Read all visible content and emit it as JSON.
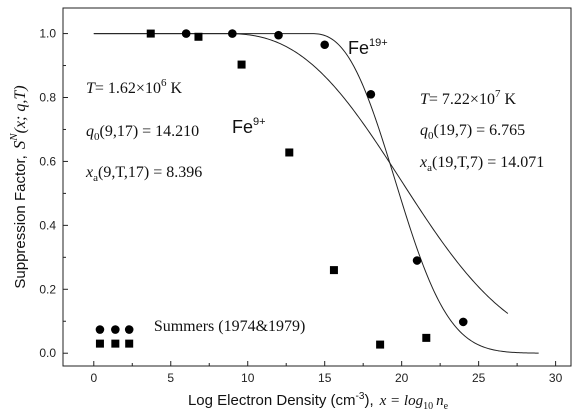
{
  "chart_data": {
    "type": "scatter",
    "xlabel_main": "Log Electron Density (cm",
    "xlabel_exp": "-3",
    "xlabel_tail": "),",
    "xlabel_eq": "x = log",
    "xlabel_eq_sub": "10",
    "xlabel_eq_var": "n",
    "xlabel_eq_var_sub": "e",
    "ylabel_main": "Suppression Factor,",
    "ylabel_S": "S",
    "ylabel_sup": "N",
    "ylabel_args": "(x; q,T)",
    "xlim": [
      -2,
      31
    ],
    "ylim": [
      -0.04,
      1.08
    ],
    "x_ticks": [
      0,
      5,
      10,
      15,
      20,
      25,
      30
    ],
    "x_tick_labels": [
      "0",
      "5",
      "10",
      "15",
      "20",
      "25",
      "30"
    ],
    "y_ticks": [
      0.0,
      0.2,
      0.4,
      0.6,
      0.8,
      1.0
    ],
    "y_tick_labels": [
      "0.0",
      "0.2",
      "0.4",
      "0.6",
      "0.8",
      "1.0"
    ],
    "grid": false,
    "series": [
      {
        "ion": "Fe",
        "charge": "9+",
        "marker": "square",
        "points": [
          [
            3.7,
            1.0
          ],
          [
            6.8,
            0.99
          ],
          [
            9.6,
            0.903
          ],
          [
            12.7,
            0.628
          ],
          [
            15.6,
            0.26
          ],
          [
            18.6,
            0.027
          ],
          [
            21.6,
            0.048
          ]
        ],
        "fit": {
          "q0": 14.21,
          "xa": 8.396,
          "x_end": 27.0
        },
        "annotation": {
          "T_label": "T",
          "T_value": "= 1.62×10",
          "T_exp": "6",
          "T_unit": " K",
          "q_label": "q",
          "q_sub": "0",
          "q_value": "(9,17) = 14.210",
          "x_label": "x",
          "x_sub": "a",
          "x_value": "(9,T,17) = 8.396"
        }
      },
      {
        "ion": "Fe",
        "charge": "19+",
        "marker": "circle",
        "points": [
          [
            6.0,
            1.0
          ],
          [
            9.0,
            1.0
          ],
          [
            12.0,
            0.995
          ],
          [
            15.0,
            0.965
          ],
          [
            18.0,
            0.81
          ],
          [
            21.0,
            0.29
          ],
          [
            24.0,
            0.098
          ]
        ],
        "fit": {
          "q0": 6.765,
          "xa": 14.071,
          "x_end": 29.0
        },
        "annotation": {
          "T_label": "T",
          "T_value": "= 7.22×10",
          "T_exp": "7",
          "T_unit": " K",
          "q_label": "q",
          "q_sub": "0",
          "q_value": "(19,7) = 6.765",
          "x_label": "x",
          "x_sub": "a",
          "x_value": "(19,T,7) = 14.071"
        }
      }
    ],
    "legend": {
      "label": "Summers (1974&1979)",
      "placement": "bottom-left"
    }
  }
}
